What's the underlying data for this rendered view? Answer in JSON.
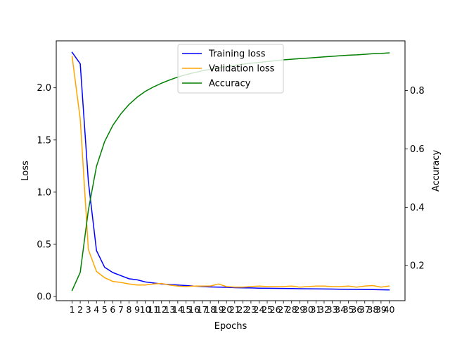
{
  "chart_data": {
    "type": "line",
    "x": [
      1,
      2,
      3,
      4,
      5,
      6,
      7,
      8,
      9,
      10,
      11,
      12,
      13,
      14,
      15,
      16,
      17,
      18,
      19,
      20,
      21,
      22,
      23,
      24,
      25,
      26,
      27,
      28,
      29,
      30,
      31,
      32,
      33,
      34,
      35,
      36,
      37,
      38,
      39,
      40
    ],
    "xlabel": "Epochs",
    "ylabel_left": "Loss",
    "ylabel_right": "Accuracy",
    "ylim_left": [
      -0.04,
      2.45
    ],
    "ylim_right": [
      0.08,
      0.97
    ],
    "yticks_left": [
      0.0,
      0.5,
      1.0,
      1.5,
      2.0
    ],
    "yticks_left_labels": [
      "0.0",
      "0.5",
      "1.0",
      "1.5",
      "2.0"
    ],
    "yticks_right": [
      0.2,
      0.4,
      0.6,
      0.8
    ],
    "yticks_right_labels": [
      "0.2",
      "0.4",
      "0.6",
      "0.8"
    ],
    "legend_position": "upper center",
    "series": [
      {
        "name": "Training loss",
        "axis": "left",
        "color": "#0000ff",
        "values": [
          2.34,
          2.23,
          1.1,
          0.44,
          0.28,
          0.23,
          0.2,
          0.17,
          0.16,
          0.14,
          0.13,
          0.12,
          0.115,
          0.11,
          0.105,
          0.1,
          0.095,
          0.092,
          0.09,
          0.088,
          0.085,
          0.083,
          0.082,
          0.08,
          0.079,
          0.078,
          0.077,
          0.076,
          0.075,
          0.074,
          0.073,
          0.072,
          0.071,
          0.07,
          0.069,
          0.068,
          0.067,
          0.066,
          0.065,
          0.063
        ]
      },
      {
        "name": "Validation loss",
        "axis": "left",
        "color": "#ffa500",
        "values": [
          2.3,
          1.7,
          0.45,
          0.24,
          0.18,
          0.145,
          0.135,
          0.12,
          0.11,
          0.11,
          0.12,
          0.125,
          0.11,
          0.1,
          0.095,
          0.1,
          0.1,
          0.1,
          0.12,
          0.095,
          0.09,
          0.09,
          0.095,
          0.1,
          0.095,
          0.095,
          0.095,
          0.1,
          0.09,
          0.095,
          0.1,
          0.1,
          0.095,
          0.095,
          0.1,
          0.09,
          0.1,
          0.105,
          0.09,
          0.1
        ]
      },
      {
        "name": "Accuracy",
        "axis": "right",
        "color": "#008000",
        "values": [
          0.115,
          0.177,
          0.39,
          0.54,
          0.625,
          0.68,
          0.72,
          0.752,
          0.777,
          0.797,
          0.812,
          0.825,
          0.836,
          0.846,
          0.854,
          0.861,
          0.867,
          0.873,
          0.878,
          0.882,
          0.886,
          0.89,
          0.893,
          0.896,
          0.899,
          0.902,
          0.905,
          0.907,
          0.909,
          0.911,
          0.913,
          0.915,
          0.917,
          0.919,
          0.921,
          0.922,
          0.924,
          0.926,
          0.927,
          0.929
        ]
      }
    ]
  }
}
